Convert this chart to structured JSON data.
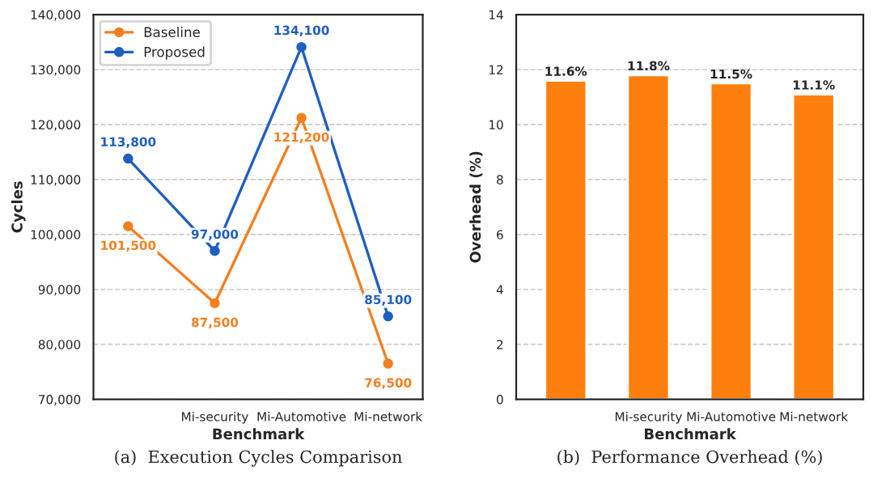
{
  "chart_data": [
    {
      "type": "line",
      "title": "(a)  Execution Cycles Comparison",
      "xlabel": "Benchmark",
      "ylabel": "Cycles",
      "categories": [
        null,
        "Mi-security",
        "Mi-Automotive",
        "Mi-network"
      ],
      "series": [
        {
          "name": "Baseline",
          "color": "#f47f20",
          "values": [
            101500,
            87500,
            121200,
            76500
          ],
          "value_labels": [
            "101,500",
            "87,500",
            "121,200",
            "76,500"
          ]
        },
        {
          "name": "Proposed",
          "color": "#1f5fbf",
          "values": [
            113800,
            97000,
            134100,
            85100
          ],
          "value_labels": [
            "113,800",
            "97,000",
            "134,100",
            "85,100"
          ]
        }
      ],
      "ylim": [
        70000,
        140000
      ],
      "yticks": [
        {
          "value": 70000,
          "label": "70,000"
        },
        {
          "value": 80000,
          "label": "80,000"
        },
        {
          "value": 90000,
          "label": "90,000"
        },
        {
          "value": 100000,
          "label": "100,000"
        },
        {
          "value": 110000,
          "label": "110,000"
        },
        {
          "value": 120000,
          "label": "120,000"
        },
        {
          "value": 130000,
          "label": "130,000"
        },
        {
          "value": 140000,
          "label": "140,000"
        }
      ],
      "grid": "y",
      "legend": "top left",
      "marker": "circle",
      "line_style": "solid"
    },
    {
      "type": "bar",
      "title": "(b)  Performance Overhead (%)",
      "xlabel": "Benchmark",
      "ylabel": "Overhead (%)",
      "categories": [
        null,
        "Mi-security",
        "Mi-Automotive",
        "Mi-network"
      ],
      "values": [
        11.6,
        11.8,
        11.5,
        11.1
      ],
      "value_labels": [
        "11.6%",
        "11.8%",
        "11.5%",
        "11.1%"
      ],
      "color": "#ff7f0e",
      "ylim": [
        0,
        14
      ],
      "yticks": [
        0,
        2,
        4,
        6,
        8,
        10,
        12,
        14
      ],
      "grid": "y"
    }
  ]
}
